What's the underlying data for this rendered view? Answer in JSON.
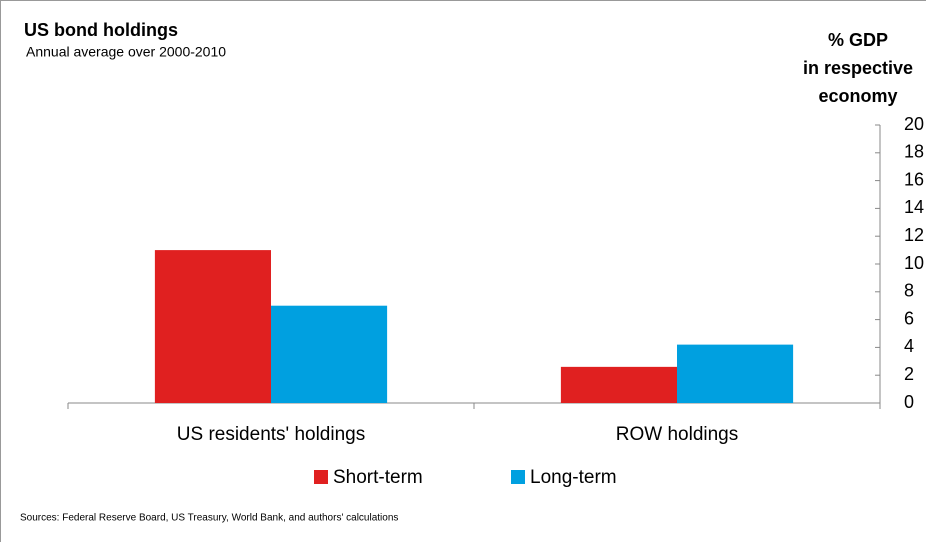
{
  "chart_data": {
    "type": "bar",
    "title": "US bond holdings",
    "subtitle": "Annual average over 2000-2010",
    "ylabel": [
      "% GDP",
      "in respective",
      "economy"
    ],
    "categories": [
      "US residents' holdings",
      "ROW holdings"
    ],
    "series": [
      {
        "name": "Short-term",
        "color": "#e02020",
        "values": [
          11,
          2.6
        ]
      },
      {
        "name": "Long-term",
        "color": "#00a0e0",
        "values": [
          7,
          4.2
        ]
      }
    ],
    "ylim": [
      0,
      20
    ],
    "yticks": [
      0,
      2,
      4,
      6,
      8,
      10,
      12,
      14,
      16,
      18,
      20
    ],
    "y_axis_side": "right",
    "grid": false,
    "legend": "bottom",
    "source": "Sources: Federal Reserve Board, US Treasury, World Bank, and authors' calculations"
  }
}
